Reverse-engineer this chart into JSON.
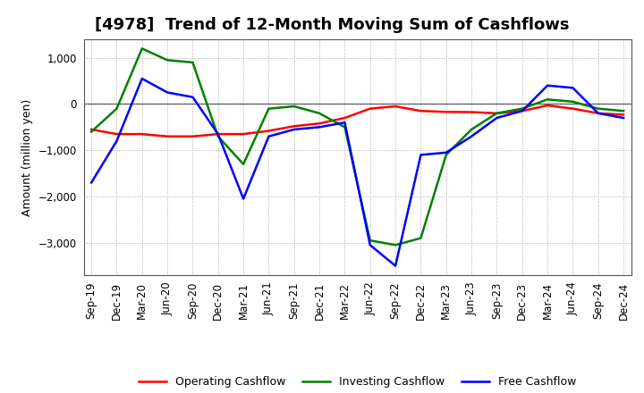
{
  "title": "[4978]  Trend of 12-Month Moving Sum of Cashflows",
  "ylabel": "Amount (million yen)",
  "labels": [
    "Sep-19",
    "Dec-19",
    "Mar-20",
    "Jun-20",
    "Sep-20",
    "Dec-20",
    "Mar-21",
    "Jun-21",
    "Sep-21",
    "Dec-21",
    "Mar-22",
    "Jun-22",
    "Sep-22",
    "Dec-22",
    "Mar-23",
    "Jun-23",
    "Sep-23",
    "Dec-23",
    "Mar-24",
    "Jun-24",
    "Sep-24",
    "Dec-24"
  ],
  "operating": [
    -550,
    -650,
    -650,
    -700,
    -700,
    -650,
    -650,
    -580,
    -480,
    -420,
    -300,
    -100,
    -50,
    -150,
    -170,
    -175,
    -200,
    -150,
    -30,
    -100,
    -200,
    -230
  ],
  "investing": [
    -600,
    -100,
    1200,
    950,
    900,
    -700,
    -1300,
    -100,
    -50,
    -200,
    -500,
    -2950,
    -3050,
    -2900,
    -1100,
    -550,
    -200,
    -100,
    100,
    50,
    -100,
    -150
  ],
  "free": [
    -1700,
    -800,
    550,
    250,
    150,
    -650,
    -2050,
    -700,
    -550,
    -500,
    -400,
    -3050,
    -3500,
    -1100,
    -1050,
    -700,
    -300,
    -150,
    400,
    350,
    -200,
    -300
  ],
  "operating_color": "#ff0000",
  "investing_color": "#008000",
  "free_color": "#0000ff",
  "ylim_low": -3700,
  "ylim_high": 1400,
  "yticks": [
    -3000,
    -2000,
    -1000,
    0,
    1000
  ],
  "bg_color": "#ffffff",
  "grid_color": "#aaaaaa",
  "title_fontsize": 13,
  "axis_fontsize": 9,
  "tick_fontsize": 8.5
}
